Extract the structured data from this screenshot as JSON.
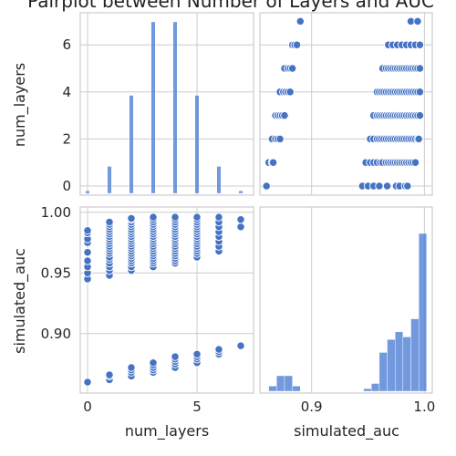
{
  "chart_data": {
    "type": "scatter",
    "title": "Pairplot between Number of Layers and AUC",
    "variables": [
      "num_layers",
      "simulated_auc"
    ],
    "xlabels": [
      "num_layers",
      "simulated_auc"
    ],
    "ylabels": [
      "num_layers",
      "simulated_auc"
    ],
    "color": "#4472c4",
    "grid": true,
    "ticks": {
      "num_layers": [
        "0",
        "2",
        "4",
        "6"
      ],
      "num_layers_x": [
        "0",
        "5"
      ],
      "simulated_auc": [
        "0.90",
        "0.95",
        "1.00"
      ],
      "simulated_auc_x": [
        "0.9",
        "1.0"
      ]
    },
    "num_layers_histogram": {
      "x": [
        0,
        1,
        2,
        3,
        4,
        5,
        6,
        7
      ],
      "counts": [
        1,
        11,
        40,
        70,
        70,
        40,
        11,
        1
      ]
    },
    "simulated_auc_histogram": {
      "bins": [
        0.855,
        0.862,
        0.869,
        0.876,
        0.883,
        0.89,
        0.897,
        0.904,
        0.911,
        0.918,
        0.925,
        0.932,
        0.939,
        0.946,
        0.953,
        0.96,
        0.967,
        0.974,
        0.981,
        0.988,
        0.995
      ],
      "counts": [
        0,
        2,
        6,
        6,
        2,
        0,
        0,
        0,
        0,
        0,
        0,
        0,
        0,
        1,
        3,
        15,
        20,
        23,
        21,
        28,
        61
      ]
    },
    "points": {
      "layers_0": [
        0.86,
        0.945,
        0.95,
        0.955,
        0.96,
        0.967,
        0.975,
        0.978,
        0.983,
        0.985
      ],
      "layers_1": [
        0.862,
        0.865,
        0.866,
        0.948,
        0.952,
        0.955,
        0.958,
        0.961,
        0.963,
        0.966,
        0.968,
        0.97,
        0.972,
        0.974,
        0.976,
        0.978,
        0.98,
        0.982,
        0.984,
        0.986,
        0.988,
        0.99,
        0.992
      ],
      "layers_2": [
        0.865,
        0.868,
        0.87,
        0.872,
        0.952,
        0.955,
        0.958,
        0.96,
        0.962,
        0.964,
        0.966,
        0.968,
        0.97,
        0.972,
        0.974,
        0.976,
        0.978,
        0.98,
        0.982,
        0.984,
        0.986,
        0.988,
        0.99,
        0.992,
        0.994,
        0.995
      ],
      "layers_3": [
        0.868,
        0.87,
        0.872,
        0.874,
        0.876,
        0.955,
        0.958,
        0.96,
        0.962,
        0.964,
        0.966,
        0.968,
        0.97,
        0.972,
        0.974,
        0.976,
        0.978,
        0.98,
        0.982,
        0.984,
        0.986,
        0.988,
        0.99,
        0.992,
        0.994,
        0.996
      ],
      "layers_4": [
        0.872,
        0.875,
        0.877,
        0.879,
        0.881,
        0.958,
        0.96,
        0.962,
        0.964,
        0.966,
        0.968,
        0.97,
        0.972,
        0.974,
        0.976,
        0.978,
        0.98,
        0.982,
        0.984,
        0.986,
        0.988,
        0.99,
        0.992,
        0.994,
        0.996
      ],
      "layers_5": [
        0.876,
        0.879,
        0.881,
        0.883,
        0.963,
        0.966,
        0.968,
        0.97,
        0.972,
        0.974,
        0.976,
        0.978,
        0.98,
        0.982,
        0.984,
        0.986,
        0.988,
        0.99,
        0.992,
        0.994,
        0.996
      ],
      "layers_6": [
        0.883,
        0.885,
        0.887,
        0.968,
        0.972,
        0.976,
        0.98,
        0.984,
        0.988,
        0.992,
        0.996
      ],
      "layers_7": [
        0.89,
        0.988,
        0.994
      ]
    }
  }
}
